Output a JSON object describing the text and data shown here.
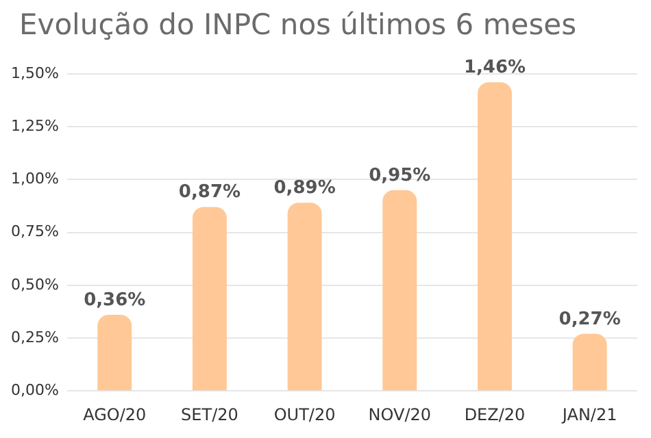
{
  "chart_data": {
    "type": "bar",
    "title": "Evolução do INPC nos últimos 6 meses",
    "categories": [
      "AGO/20",
      "SET/20",
      "OUT/20",
      "NOV/20",
      "DEZ/20",
      "JAN/21"
    ],
    "values": [
      0.36,
      0.87,
      0.89,
      0.95,
      1.46,
      0.27
    ],
    "value_labels": [
      "0,36%",
      "0,87%",
      "0,89%",
      "0,95%",
      "1,46%",
      "0,27%"
    ],
    "color": "#ffc896",
    "ylim": [
      0,
      1.5
    ],
    "yticks": [
      {
        "value": 0,
        "label": "0,00%"
      },
      {
        "value": 0.25,
        "label": "0,25%"
      },
      {
        "value": 0.5,
        "label": "0,50%"
      },
      {
        "value": 0.75,
        "label": "0,75%"
      },
      {
        "value": 1,
        "label": "1,00%"
      },
      {
        "value": 1.25,
        "label": "1,25%"
      },
      {
        "value": 1.5,
        "label": "1,50%"
      }
    ],
    "grid": "y",
    "legend": false
  }
}
